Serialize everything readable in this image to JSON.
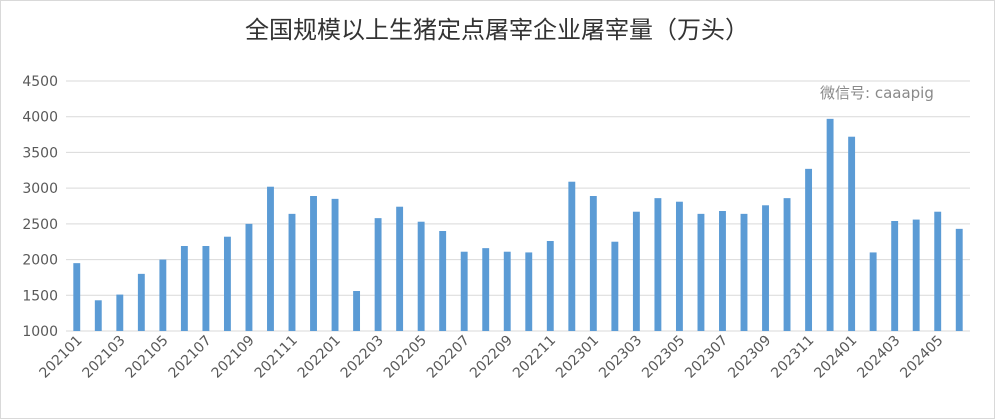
{
  "chart_data": {
    "type": "bar",
    "title": "全国规模以上生猪定点屠宰企业屠宰量（万头）",
    "annotation": "微信号: caaapig",
    "categories": [
      "202101",
      null,
      "202103",
      null,
      "202105",
      null,
      "202107",
      null,
      "202109",
      null,
      "202111",
      null,
      "202201",
      null,
      "202203",
      null,
      "202205",
      null,
      "202207",
      null,
      "202209",
      null,
      "202211",
      null,
      "202301",
      null,
      "202303",
      null,
      "202305",
      null,
      "202307",
      null,
      "202309",
      null,
      "202311",
      null,
      "202401",
      null,
      "202403",
      null,
      "202405",
      null
    ],
    "values": [
      1950,
      1430,
      1510,
      1800,
      2000,
      2190,
      2190,
      2320,
      2500,
      3020,
      2640,
      2890,
      2850,
      1560,
      2580,
      2740,
      2530,
      2400,
      2110,
      2160,
      2110,
      2100,
      2260,
      3090,
      2890,
      2250,
      2670,
      2860,
      2810,
      2640,
      2680,
      2640,
      2760,
      2860,
      3270,
      3970,
      3720,
      2100,
      2540,
      2560,
      2670,
      2430
    ],
    "color": "#5b9bd5",
    "ylim": [
      1000,
      4500
    ],
    "yticks": [
      1000,
      1500,
      2000,
      2500,
      3000,
      3500,
      4000,
      4500
    ],
    "grid": true
  }
}
